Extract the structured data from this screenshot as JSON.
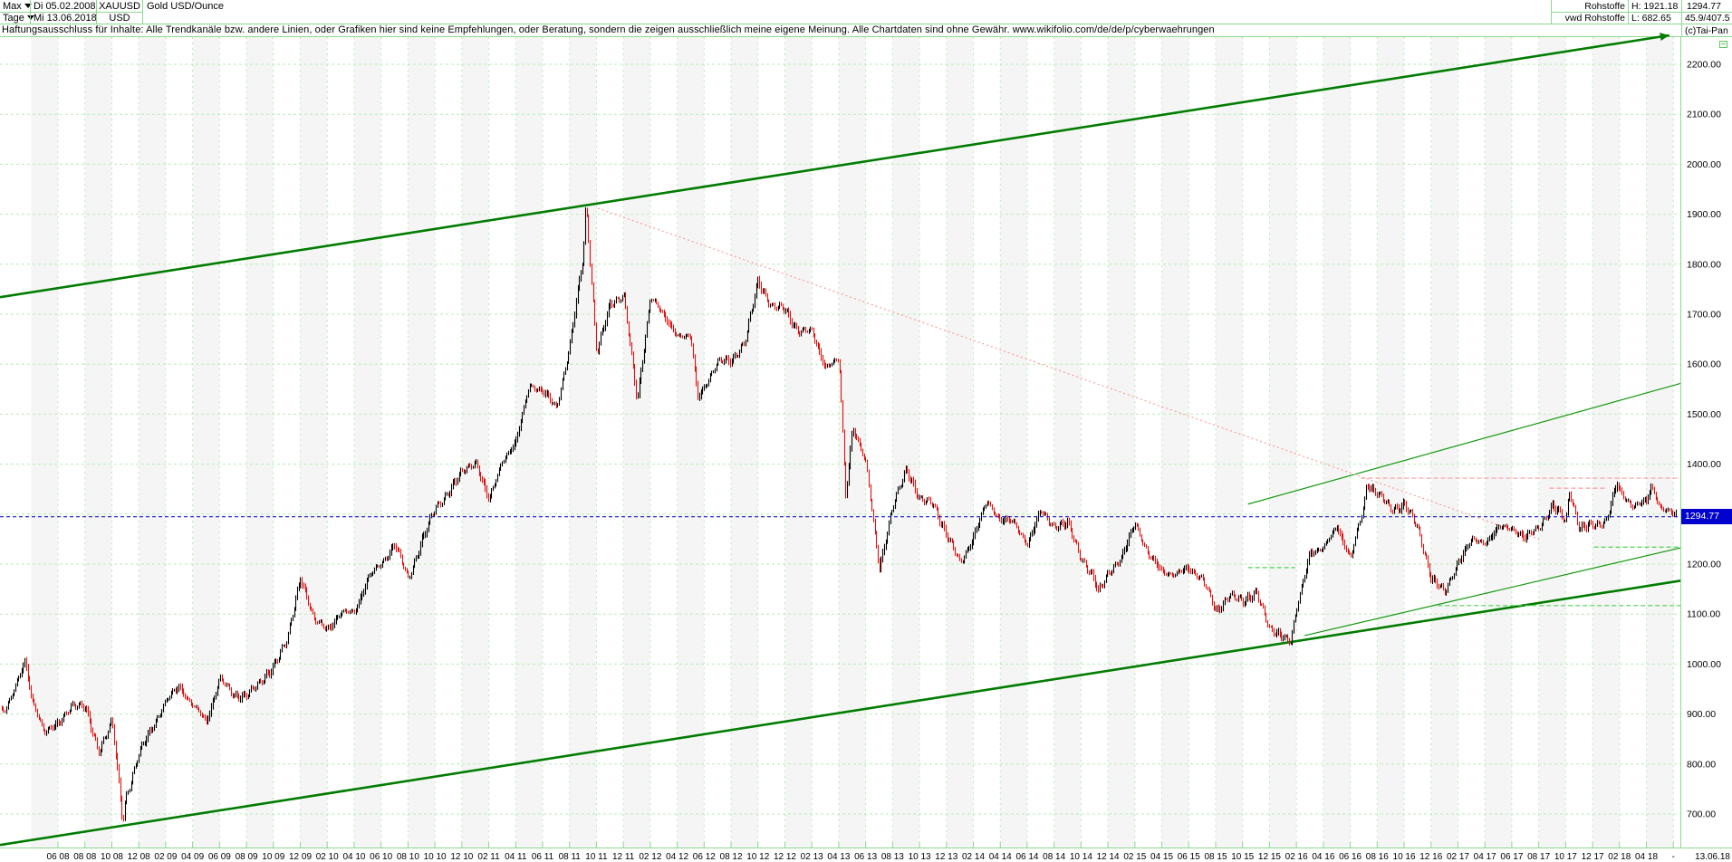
{
  "window": {
    "range": "Max",
    "interval": "Tage",
    "date_from": "Di 05.02.2008",
    "date_to": "Mi 13.06.2018",
    "symbol": "XAUUSD",
    "currency": "USD",
    "title": "Gold USD/Ounce",
    "feed_line1": "Rohstoffe",
    "feed_line2": "vwd Rohstoffe",
    "high": "H: 1921.18",
    "low": "L: 682.65",
    "last_price": "1294.77",
    "stats": "45.9/407.5",
    "copyright": "(c)Tai-Pan"
  },
  "disclaimer": "Haftungsausschluss für Inhalte: Alle Trendkanäle bzw. andere Linien, oder Grafiken hier sind keine Empfehlungen, oder Beratung, sondern die zeigen ausschließlich meine eigene Meinung. Alle Chartdaten sind ohne Gewähr.  www.wikifolio.com/de/de/p/cyberwaehrungen",
  "colors": {
    "grid": "#b9ecb9",
    "border": "#8fd88f",
    "band": "#f5f5f5",
    "channel": "#007c00",
    "thin_green": "#15990f",
    "dash_green": "#4cd34c",
    "pink": "#ff9c9c",
    "blue": "#1616cc",
    "bar_up": "#000000",
    "bar_down": "#dd1111",
    "label_bg": "#0202cf"
  },
  "chart_data": {
    "type": "bar",
    "instrument": "XAUUSD",
    "title": "Gold USD/Ounce",
    "period_shown": "05.02.2008 - 13.06.2018",
    "high": 1921.18,
    "low": 682.65,
    "last": 1294.77,
    "last_label": "1294.77",
    "ylim": [
      640,
      2270
    ],
    "grid": "dashed light green, 100-unit horizontal steps, 2-month vertical steps",
    "y_ticks": [
      "2200.00",
      "2100.00",
      "2000.00",
      "1900.00",
      "1800.00",
      "1700.00",
      "1600.00",
      "1500.00",
      "1400.00",
      "1300.00",
      "1200.00",
      "1100.00",
      "1000.00",
      "900.00",
      "800.00",
      "700.00"
    ],
    "x_tick_labels": [
      "06 08",
      "08 08",
      "10 08",
      "12 08",
      "02 09",
      "04 09",
      "06 09",
      "08 09",
      "10 09",
      "12 09",
      "02 10",
      "04 10",
      "06 10",
      "08 10",
      "10 10",
      "12 10",
      "02 11",
      "04 11",
      "06 11",
      "08 11",
      "10 11",
      "12 11",
      "02 12",
      "04 12",
      "06 12",
      "08 12",
      "10 12",
      "12 12",
      "02 13",
      "04 13",
      "06 13",
      "08 13",
      "10 13",
      "12 13",
      "02 14",
      "04 14",
      "06 14",
      "08 14",
      "10 14",
      "12 14",
      "02 15",
      "04 15",
      "06 15",
      "08 15",
      "10 15",
      "12 15",
      "02 16",
      "04 16",
      "06 16",
      "08 16",
      "10 16",
      "12 16",
      "02 17",
      "04 17",
      "06 17",
      "08 17",
      "10 17",
      "12 17",
      "02 18",
      "04 18"
    ],
    "x_axis_end": {
      "dash": "-",
      "date": "13.06.18"
    },
    "start_month": "2008-02",
    "open_first": 905,
    "monthly_closes": [
      971,
      933,
      871,
      885,
      930,
      918,
      833,
      884,
      730,
      814,
      869,
      919,
      952,
      916,
      883,
      975,
      934,
      939,
      955,
      995,
      1040,
      1175,
      1087,
      1078,
      1108,
      1115,
      1179,
      1207,
      1244,
      1169,
      1246,
      1307,
      1346,
      1383,
      1410,
      1327,
      1411,
      1439,
      1556,
      1536,
      1505,
      1628,
      1813,
      1620,
      1722,
      1746,
      1531,
      1744,
      1696,
      1662,
      1651,
      1558,
      1604,
      1614,
      1648,
      1776,
      1719,
      1714,
      1664,
      1661,
      1588,
      1598,
      1469,
      1394,
      1192,
      1313,
      1396,
      1326,
      1324,
      1253,
      1201,
      1251,
      1326,
      1291,
      1288,
      1250,
      1315,
      1285,
      1285,
      1216,
      1164,
      1182,
      1206,
      1283,
      1214,
      1187,
      1180,
      1191,
      1171,
      1098,
      1135,
      1114,
      1142,
      1061,
      1060,
      1111,
      1234,
      1237,
      1285,
      1215,
      1320,
      1342,
      1309,
      1322,
      1272,
      1178,
      1146,
      1212,
      1248,
      1244,
      1266,
      1266,
      1242,
      1267,
      1311,
      1283,
      1271,
      1280,
      1291,
      1345,
      1318,
      1323,
      1315,
      1298,
      1294.77
    ],
    "extremes": [
      {
        "m": 1.55,
        "p": 1004
      },
      {
        "m": 8.8,
        "p": 682.65
      },
      {
        "m": 43.2,
        "p": 1921.18
      },
      {
        "m": 51.5,
        "p": 1535
      },
      {
        "m": 62.5,
        "p": 1330
      },
      {
        "m": 81.25,
        "p": 1140
      },
      {
        "m": 95.55,
        "p": 1046
      },
      {
        "m": 101.2,
        "p": 1366
      },
      {
        "m": 116.25,
        "p": 1350
      },
      {
        "m": 119.8,
        "p": 1363
      },
      {
        "m": 122.35,
        "p": 1355
      }
    ],
    "annotations": [
      {
        "name": "upper-trend-channel-line",
        "m1": -0.31,
        "p1": 1734,
        "m2": 123.7,
        "p2": 2258,
        "color": "channel",
        "width": 2.6,
        "dash": null,
        "arrow": true
      },
      {
        "name": "lower-trend-channel-line",
        "m1": -0.31,
        "p1": 638,
        "m2": 124.6,
        "p2": 1167,
        "color": "channel",
        "width": 2.6,
        "dash": null
      },
      {
        "name": "support-line-upper",
        "m1": 92.4,
        "p1": 1320,
        "m2": 124.6,
        "p2": 1562,
        "color": "thin_green",
        "width": 1.2,
        "dash": null
      },
      {
        "name": "support-line-lower",
        "m1": 96.6,
        "p1": 1057,
        "m2": 124.6,
        "p2": 1233,
        "color": "thin_green",
        "width": 1.2,
        "dash": null
      },
      {
        "name": "downtrend-line-from-2011-high",
        "m1": 44.1,
        "p1": 1912,
        "m2": 114.1,
        "p2": 1249,
        "color": "pink",
        "width": 1.2,
        "dash": "2,3"
      },
      {
        "name": "horizontal-resistance-pink",
        "m1": 100.8,
        "p1": 1372,
        "m2": 124.6,
        "p2": 1372,
        "color": "pink",
        "width": 1.2,
        "dash": "5,3"
      },
      {
        "name": "horizontal-resistance-pink-short",
        "m1": 114.8,
        "p1": 1352,
        "m2": 118.9,
        "p2": 1352,
        "color": "pink",
        "width": 1.2,
        "dash": "5,3"
      },
      {
        "name": "horizontal-support-green-1234",
        "m1": 118.1,
        "p1": 1234,
        "m2": 124.6,
        "p2": 1234,
        "color": "dash_green",
        "width": 1.2,
        "dash": "5,3"
      },
      {
        "name": "horizontal-support-green-1117",
        "m1": 106.5,
        "p1": 1117,
        "m2": 124.6,
        "p2": 1117,
        "color": "dash_green",
        "width": 1.2,
        "dash": "5,3"
      },
      {
        "name": "horizontal-support-green-1193",
        "m1": 92.4,
        "p1": 1193,
        "m2": 95.9,
        "p2": 1193,
        "color": "dash_green",
        "width": 1.2,
        "dash": "5,3"
      },
      {
        "name": "current-price-line",
        "m1": -0.31,
        "p1": 1294.77,
        "m2": 124.7,
        "p2": 1294.77,
        "color": "blue",
        "width": 1.2,
        "dash": "4,3",
        "on_top": true
      }
    ]
  }
}
